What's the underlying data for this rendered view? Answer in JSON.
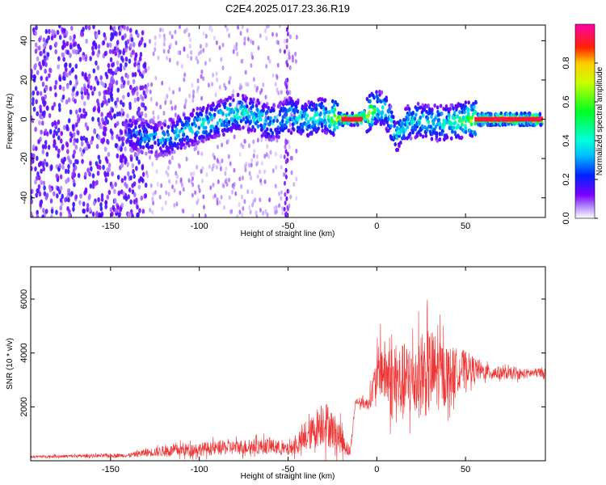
{
  "title": "C2E4.2025.017.23.36.R19",
  "chart_data": [
    {
      "type": "heatmap",
      "xlabel": "Height of straight line (km)",
      "ylabel": "Frequency (Hz)",
      "xlim": [
        -195,
        95
      ],
      "ylim": [
        -50,
        48
      ],
      "x_ticks": [
        -150,
        -100,
        -50,
        0,
        50
      ],
      "y_ticks": [
        40,
        20,
        0,
        -20,
        -40
      ],
      "colorbar": {
        "label": "Normalized spectral amplitude",
        "range": [
          0,
          1
        ],
        "ticks": [
          0.0,
          0.2,
          0.4,
          0.6,
          0.8
        ],
        "colors": [
          "#ffffff",
          "#7b00ff",
          "#0044ff",
          "#00e5ff",
          "#00ff2a",
          "#ffff00",
          "#ff0000",
          "#ff00aa"
        ]
      },
      "ridge": [
        {
          "x": -140,
          "f": -7,
          "amp": 0.3
        },
        {
          "x": -130,
          "f": -9,
          "amp": 0.35
        },
        {
          "x": -120,
          "f": -10,
          "amp": 0.35
        },
        {
          "x": -110,
          "f": -6,
          "amp": 0.4
        },
        {
          "x": -100,
          "f": -3,
          "amp": 0.45
        },
        {
          "x": -90,
          "f": 0,
          "amp": 0.45
        },
        {
          "x": -80,
          "f": 4,
          "amp": 0.5
        },
        {
          "x": -70,
          "f": 2,
          "amp": 0.45
        },
        {
          "x": -60,
          "f": -2,
          "amp": 0.4
        },
        {
          "x": -50,
          "f": 2,
          "amp": 0.45
        },
        {
          "x": -40,
          "f": 0,
          "amp": 0.45
        },
        {
          "x": -30,
          "f": 2,
          "amp": 0.5
        },
        {
          "x": -20,
          "f": 0,
          "amp": 0.9
        },
        {
          "x": -10,
          "f": 0,
          "amp": 0.95
        },
        {
          "x": 0,
          "f": 6,
          "amp": 0.5
        },
        {
          "x": 5,
          "f": 4,
          "amp": 0.45
        },
        {
          "x": 10,
          "f": -8,
          "amp": 0.4
        },
        {
          "x": 20,
          "f": 0,
          "amp": 0.45
        },
        {
          "x": 30,
          "f": -2,
          "amp": 0.45
        },
        {
          "x": 40,
          "f": -2,
          "amp": 0.5
        },
        {
          "x": 50,
          "f": 0,
          "amp": 0.6
        },
        {
          "x": 60,
          "f": 0,
          "amp": 0.95
        },
        {
          "x": 75,
          "f": 0,
          "amp": 0.95
        },
        {
          "x": 90,
          "f": 0,
          "amp": 0.95
        }
      ]
    },
    {
      "type": "line",
      "xlabel": "Height of straight line (km)",
      "ylabel": "SNR (10 * v/v)",
      "xlim": [
        -195,
        95
      ],
      "ylim": [
        0,
        7200
      ],
      "x_ticks": [
        -150,
        -100,
        -50,
        0,
        50
      ],
      "y_ticks": [
        2000,
        4000,
        6000
      ],
      "color": "#ee3333",
      "envelope": [
        {
          "x": -195,
          "base": 150,
          "amp": 80
        },
        {
          "x": -140,
          "base": 200,
          "amp": 120
        },
        {
          "x": -130,
          "base": 300,
          "amp": 250
        },
        {
          "x": -110,
          "base": 400,
          "amp": 400
        },
        {
          "x": -80,
          "base": 500,
          "amp": 450
        },
        {
          "x": -60,
          "base": 550,
          "amp": 500
        },
        {
          "x": -50,
          "base": 400,
          "amp": 400
        },
        {
          "x": -40,
          "base": 800,
          "amp": 800
        },
        {
          "x": -30,
          "base": 1500,
          "amp": 1500
        },
        {
          "x": -20,
          "base": 800,
          "amp": 900
        },
        {
          "x": -15,
          "base": 300,
          "amp": 300
        },
        {
          "x": -12,
          "base": 2200,
          "amp": 200
        },
        {
          "x": -5,
          "base": 2100,
          "amp": 400
        },
        {
          "x": 2,
          "base": 3500,
          "amp": 1800
        },
        {
          "x": 10,
          "base": 2800,
          "amp": 2500
        },
        {
          "x": 20,
          "base": 3000,
          "amp": 2400
        },
        {
          "x": 30,
          "base": 3300,
          "amp": 2800
        },
        {
          "x": 40,
          "base": 3200,
          "amp": 1800
        },
        {
          "x": 50,
          "base": 3500,
          "amp": 1000
        },
        {
          "x": 60,
          "base": 3300,
          "amp": 500
        },
        {
          "x": 80,
          "base": 3200,
          "amp": 300
        },
        {
          "x": 95,
          "base": 3300,
          "amp": 300
        }
      ]
    }
  ]
}
